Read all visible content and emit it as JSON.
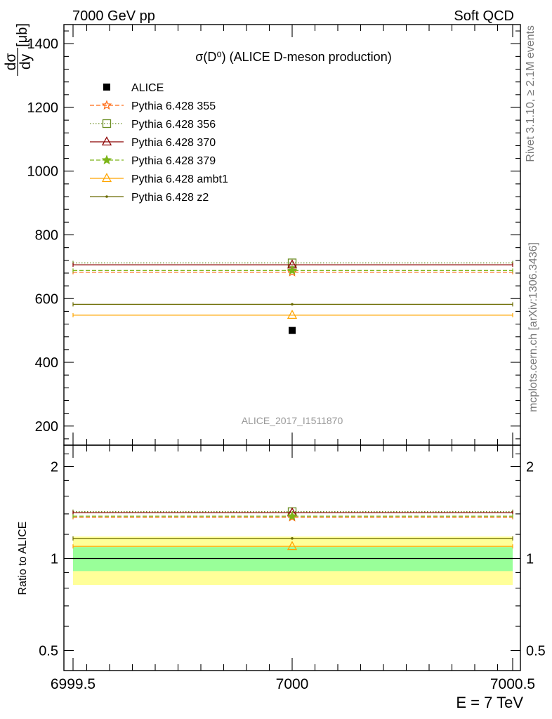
{
  "header": {
    "left": "7000 GeV pp",
    "right": "Soft QCD"
  },
  "side_labels": {
    "rivet": "Rivet 3.1.10, ≥ 2.1M events",
    "mcplots": "mcplots.cern.ch [arXiv:1306.3436]"
  },
  "chart_data": [
    {
      "type": "scatter",
      "title": "σ(D⁰) (ALICE D-meson production)",
      "ylabel_num": "dσ",
      "ylabel_den": "dy",
      "ylabel_unit": "[μb]",
      "watermark": "ALICE_2017_I1511870",
      "xlim": [
        6999.5,
        7000.5
      ],
      "ylim": [
        140,
        1460
      ],
      "yticks": [
        200,
        400,
        600,
        800,
        1000,
        1200,
        1400
      ],
      "ytick_labels": [
        "200",
        "400",
        "600",
        "800",
        "1000",
        "1200",
        "1400"
      ],
      "legend_placement": "top-left",
      "series": [
        {
          "name": "ALICE",
          "x": 7000,
          "value": 500,
          "color": "#000000",
          "marker": "square-filled",
          "dash": ""
        },
        {
          "name": "Pythia 6.428 355",
          "x": 7000,
          "value": 683,
          "color": "#ff6a13",
          "marker": "star-open",
          "dash": "6,3"
        },
        {
          "name": "Pythia 6.428 356",
          "x": 7000,
          "value": 712,
          "color": "#6b8e23",
          "marker": "square-open",
          "dash": "1.5,2.5"
        },
        {
          "name": "Pythia 6.428 370",
          "x": 7000,
          "value": 706,
          "color": "#8b0000",
          "marker": "triangle-open",
          "dash": ""
        },
        {
          "name": "Pythia 6.428 379",
          "x": 7000,
          "value": 688,
          "color": "#7cb518",
          "marker": "star-filled",
          "dash": "6,3"
        },
        {
          "name": "Pythia 6.428 ambt1",
          "x": 7000,
          "value": 548,
          "color": "#ffa500",
          "marker": "triangle-open",
          "dash": ""
        },
        {
          "name": "Pythia 6.428 z2",
          "x": 7000,
          "value": 582,
          "color": "#6b6b00",
          "marker": "dot",
          "dash": ""
        }
      ]
    },
    {
      "type": "scatter",
      "ylabel": "Ratio to ALICE",
      "xlabel": "E = 7 TeV",
      "xlim": [
        6999.5,
        7000.5
      ],
      "xticks": [
        6999.5,
        7000,
        7000.5
      ],
      "xtick_labels": [
        "6999.5",
        "7000",
        "7000.5"
      ],
      "ylim": [
        0.43,
        2.35
      ],
      "ylog": true,
      "yticks": [
        0.5,
        1,
        2
      ],
      "ytick_labels": [
        "0.5",
        "1",
        "2"
      ],
      "bands": [
        {
          "name": "total uncertainty",
          "low": 0.82,
          "high": 1.18,
          "color": "#ffff99"
        },
        {
          "name": "statistical uncertainty",
          "low": 0.91,
          "high": 1.09,
          "color": "#99ff99"
        }
      ],
      "series": [
        {
          "name": "Pythia 6.428 355",
          "value": 1.366,
          "color": "#ff6a13",
          "marker": "star-open",
          "dash": "6,3"
        },
        {
          "name": "Pythia 6.428 356",
          "value": 1.424,
          "color": "#6b8e23",
          "marker": "square-open",
          "dash": "1.5,2.5"
        },
        {
          "name": "Pythia 6.428 370",
          "value": 1.412,
          "color": "#8b0000",
          "marker": "triangle-open",
          "dash": ""
        },
        {
          "name": "Pythia 6.428 379",
          "value": 1.376,
          "color": "#7cb518",
          "marker": "star-filled",
          "dash": "6,3"
        },
        {
          "name": "Pythia 6.428 ambt1",
          "value": 1.096,
          "color": "#ffa500",
          "marker": "triangle-open",
          "dash": ""
        },
        {
          "name": "Pythia 6.428 z2",
          "value": 1.164,
          "color": "#6b6b00",
          "marker": "dot",
          "dash": ""
        }
      ]
    }
  ]
}
